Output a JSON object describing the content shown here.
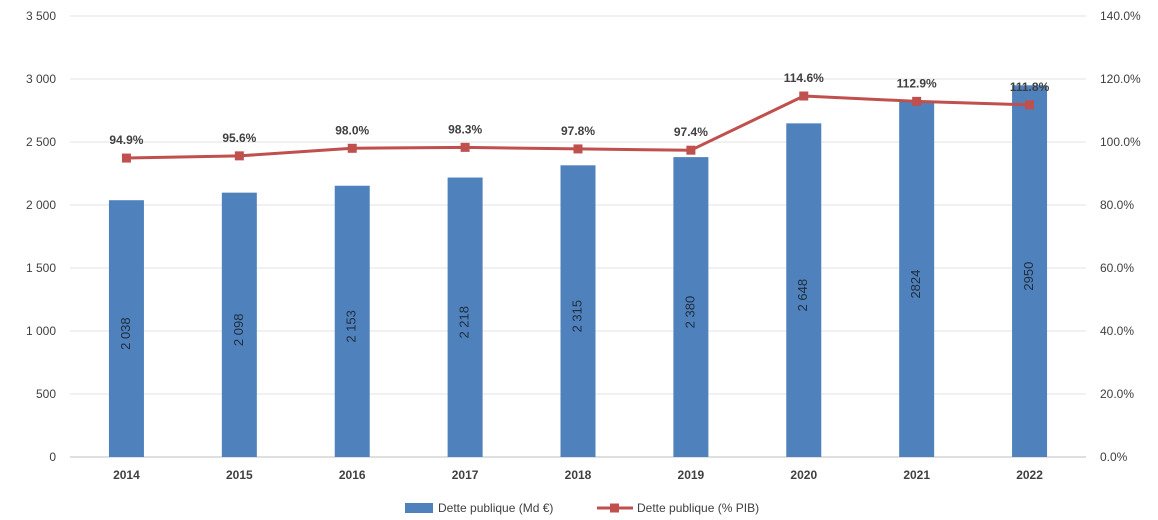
{
  "chart_data": {
    "type": "bar",
    "title": "",
    "xlabel": "",
    "ylabel": "",
    "categories": [
      "2014",
      "2015",
      "2016",
      "2017",
      "2018",
      "2019",
      "2020",
      "2021",
      "2022"
    ],
    "series": [
      {
        "name": "Dette publique (Md €)",
        "type": "bar",
        "axis": "left",
        "color": "#4f81bd",
        "values": [
          2038,
          2098,
          2153,
          2218,
          2315,
          2380,
          2648,
          2824,
          2950
        ],
        "labels": [
          "2 038",
          "2 098",
          "2 153",
          "2 218",
          "2 315",
          "2 380",
          "2 648",
          "2824",
          "2950"
        ]
      },
      {
        "name": "Dette publique (% PIB)",
        "type": "line",
        "axis": "right",
        "color": "#c0504d",
        "values": [
          94.9,
          95.6,
          98.0,
          98.3,
          97.8,
          97.4,
          114.6,
          112.9,
          111.8
        ],
        "labels": [
          "94.9%",
          "95.6%",
          "98.0%",
          "98.3%",
          "97.8%",
          "97.4%",
          "114.6%",
          "112.9%",
          "111.8%"
        ]
      }
    ],
    "ylim_left": [
      0,
      3500
    ],
    "yticks_left": [
      "0",
      "500",
      "1 000",
      "1 500",
      "2 000",
      "2 500",
      "3 000",
      "3 500"
    ],
    "ylim_right": [
      0,
      140
    ],
    "yticks_right": [
      "0.0%",
      "20.0%",
      "40.0%",
      "60.0%",
      "80.0%",
      "100.0%",
      "120.0%",
      "140.0%"
    ],
    "grid": true,
    "legend_position": "bottom-center"
  }
}
